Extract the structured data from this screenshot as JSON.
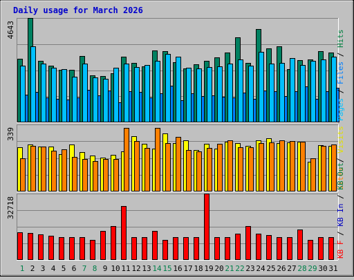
{
  "chart_data": [
    {
      "type": "bar",
      "title": "Daily usage for March 2026",
      "categories": [
        "1",
        "2",
        "3",
        "4",
        "5",
        "6",
        "7",
        "8",
        "9",
        "10",
        "11",
        "12",
        "13",
        "14",
        "15",
        "16",
        "17",
        "18",
        "19",
        "20",
        "21",
        "22",
        "23",
        "24",
        "25",
        "26",
        "27",
        "28",
        "29",
        "30",
        "31"
      ],
      "weekend_days": [
        "1",
        "7",
        "8",
        "14",
        "15",
        "21",
        "22",
        "28",
        "29"
      ],
      "ylim": [
        0,
        4643
      ],
      "y_max_label": "4643",
      "right_axis_labels": [
        {
          "text": "Pages",
          "color": "#00c0ff"
        },
        {
          "text": " / ",
          "color": "#000000"
        },
        {
          "text": "Files",
          "color": "#0080ff"
        },
        {
          "text": " / ",
          "color": "#000000"
        },
        {
          "text": "Hits",
          "color": "#008040"
        }
      ],
      "series": [
        {
          "name": "Hits",
          "color": "#008060",
          "values": [
            2830,
            4643,
            2730,
            2530,
            2330,
            2350,
            2950,
            2080,
            2050,
            2190,
            2930,
            2630,
            2480,
            3190,
            3170,
            2670,
            2410,
            2580,
            2730,
            2880,
            3110,
            3780,
            2640,
            4150,
            3290,
            3370,
            2380,
            2760,
            2810,
            3160,
            3110
          ]
        },
        {
          "name": "Files",
          "color": "#0080ff",
          "values": [
            1230,
            1360,
            1100,
            1060,
            1010,
            1120,
            1440,
            1200,
            1410,
            880,
            1370,
            1360,
            1120,
            1300,
            1620,
            990,
            1300,
            1180,
            1210,
            1140,
            1100,
            1330,
            1060,
            1410,
            1370,
            1180,
            1370,
            1590,
            1040,
            1370,
            1550
          ]
        },
        {
          "name": "Pages",
          "color": "#00c0ff",
          "values": [
            2520,
            3380,
            2620,
            2440,
            2380,
            2020,
            2610,
            2010,
            1940,
            2440,
            2600,
            2450,
            2550,
            2750,
            3050,
            2910,
            2430,
            2400,
            2460,
            2480,
            2620,
            2800,
            2510,
            3130,
            2600,
            2640,
            2860,
            2560,
            2740,
            2800,
            2910
          ]
        }
      ]
    },
    {
      "type": "bar",
      "ylim": [
        0,
        339
      ],
      "y_max_label": "339",
      "right_axis_labels": [
        {
          "text": "Sites",
          "color": "#ff8000"
        },
        {
          "text": " / ",
          "color": "#000000"
        },
        {
          "text": "Visits",
          "color": "#e0e000"
        }
      ],
      "series": [
        {
          "name": "Visits",
          "color": "#ffff00",
          "values": [
            225,
            237,
            227,
            227,
            190,
            237,
            200,
            182,
            172,
            185,
            203,
            280,
            242,
            215,
            295,
            245,
            259,
            210,
            240,
            215,
            250,
            245,
            232,
            258,
            268,
            244,
            248,
            253,
            150,
            233,
            232
          ]
        },
        {
          "name": "Sites",
          "color": "#ff8000",
          "values": [
            168,
            231,
            227,
            207,
            212,
            173,
            166,
            154,
            163,
            164,
            323,
            255,
            220,
            323,
            245,
            275,
            210,
            202,
            221,
            240,
            260,
            222,
            225,
            244,
            247,
            257,
            256,
            251,
            167,
            232,
            237
          ]
        }
      ]
    },
    {
      "type": "bar",
      "ylim": [
        0,
        32718
      ],
      "y_max_label": "32718",
      "right_axis_labels": [
        {
          "text": "KB F",
          "color": "#ff0000"
        },
        {
          "text": " / ",
          "color": "#000000"
        },
        {
          "text": "KB In",
          "color": "#0000c0"
        },
        {
          "text": " / ",
          "color": "#000000"
        },
        {
          "text": "KB Out",
          "color": "#008040"
        }
      ],
      "series": [
        {
          "name": "KB F",
          "color": "#ff0000",
          "values": [
            13500,
            13250,
            12650,
            11950,
            11200,
            11150,
            11100,
            9950,
            14200,
            16750,
            26700,
            11400,
            11400,
            14200,
            9950,
            11250,
            11150,
            11150,
            32718,
            11400,
            11150,
            12800,
            16800,
            12800,
            12250,
            11250,
            11400,
            14900,
            9950,
            11400,
            11400
          ]
        }
      ]
    }
  ]
}
